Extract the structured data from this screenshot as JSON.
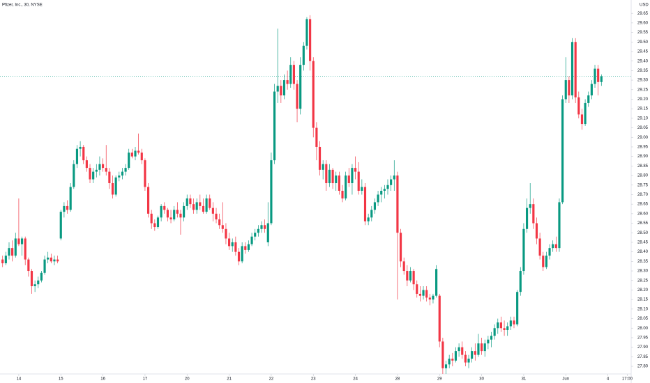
{
  "chart_data": {
    "type": "candlestick",
    "title": "Pfizer, Inc., 30, NYSE",
    "currency": "USD",
    "up_color": "#089981",
    "down_color": "#f23645",
    "price_line": 29.32,
    "price_line_color": "#089981",
    "grid": false,
    "ylim": [
      27.76,
      29.72
    ],
    "yticks": [
      {
        "value": 27.8,
        "label": "27.80"
      },
      27.85,
      {
        "value": 27.9,
        "label": "27.90"
      },
      27.95,
      {
        "value": 28,
        "label": "28.00"
      },
      28.05,
      {
        "value": 28.1,
        "label": "28.10"
      },
      28.15,
      {
        "value": 28.2,
        "label": "28.20"
      },
      28.25,
      {
        "value": 28.3,
        "label": "28.30"
      },
      28.35,
      {
        "value": 28.4,
        "label": "28.40"
      },
      28.45,
      {
        "value": 28.5,
        "label": "28.50"
      },
      28.55,
      {
        "value": 28.6,
        "label": "28.60"
      },
      28.65,
      {
        "value": 28.7,
        "label": "28.70"
      },
      28.75,
      {
        "value": 28.8,
        "label": "28.80"
      },
      28.85,
      {
        "value": 28.9,
        "label": "28.90"
      },
      28.95,
      {
        "value": 29,
        "label": "29.00"
      },
      29.05,
      {
        "value": 29.1,
        "label": "29.10"
      },
      29.15,
      {
        "value": 29.2,
        "label": "29.20"
      },
      29.25,
      {
        "value": 29.3,
        "label": "29.30"
      },
      29.35,
      {
        "value": 29.4,
        "label": "29.40"
      },
      29.45,
      {
        "value": 29.5,
        "label": "29.50"
      },
      29.55,
      {
        "value": 29.6,
        "label": "29.60"
      },
      29.65
    ],
    "xlim": [
      -0.8,
      194.2
    ],
    "xticks": [
      {
        "value": 5,
        "label": "14"
      },
      {
        "value": 18,
        "label": "15"
      },
      {
        "value": 31,
        "label": "16"
      },
      {
        "value": 44,
        "label": "17"
      },
      {
        "value": 57,
        "label": "20"
      },
      {
        "value": 70,
        "label": "21"
      },
      {
        "value": 83,
        "label": "22"
      },
      {
        "value": 96,
        "label": "23"
      },
      {
        "value": 109,
        "label": "24"
      },
      {
        "value": 122,
        "label": "28"
      },
      {
        "value": 135,
        "label": "29"
      },
      {
        "value": 148,
        "label": "30"
      },
      {
        "value": 161,
        "label": "31"
      },
      {
        "value": 174,
        "label": "Jun"
      },
      {
        "value": 187,
        "label": "4"
      },
      {
        "value": 193,
        "label": "17:00"
      }
    ],
    "ohlc": [
      [
        28.36,
        28.38,
        28.32,
        28.34
      ],
      [
        28.34,
        28.4,
        28.33,
        28.38
      ],
      [
        28.38,
        28.45,
        28.36,
        28.42
      ],
      [
        28.42,
        28.46,
        28.35,
        28.38
      ],
      [
        28.38,
        28.5,
        28.37,
        28.47
      ],
      [
        28.47,
        28.68,
        28.43,
        28.44
      ],
      [
        28.44,
        28.48,
        28.38,
        28.47
      ],
      [
        28.47,
        28.48,
        28.33,
        28.36
      ],
      [
        28.36,
        28.37,
        28.27,
        28.3
      ],
      [
        28.3,
        28.31,
        28.18,
        28.22
      ],
      [
        28.22,
        28.25,
        28.19,
        28.23
      ],
      [
        28.23,
        28.27,
        28.21,
        28.25
      ],
      [
        28.25,
        28.3,
        28.24,
        28.29
      ],
      [
        28.29,
        28.38,
        28.28,
        28.36
      ],
      [
        28.36,
        28.4,
        28.34,
        28.37
      ],
      [
        28.37,
        28.39,
        28.34,
        28.35
      ],
      [
        28.35,
        28.38,
        28.33,
        28.36
      ],
      [
        28.36,
        28.38,
        28.34,
        28.35
      ],
      [
        28.47,
        28.62,
        28.46,
        28.61
      ],
      [
        28.61,
        28.66,
        28.58,
        28.64
      ],
      [
        28.64,
        28.67,
        28.6,
        28.62
      ],
      [
        28.62,
        28.76,
        28.61,
        28.74
      ],
      [
        28.74,
        28.88,
        28.73,
        28.86
      ],
      [
        28.86,
        28.96,
        28.84,
        28.94
      ],
      [
        28.94,
        28.98,
        28.9,
        28.95
      ],
      [
        28.95,
        28.96,
        28.86,
        28.88
      ],
      [
        28.88,
        28.9,
        28.82,
        28.84
      ],
      [
        28.84,
        28.86,
        28.76,
        28.78
      ],
      [
        28.78,
        28.84,
        28.76,
        28.82
      ],
      [
        28.82,
        28.86,
        28.79,
        28.83
      ],
      [
        28.83,
        28.9,
        28.8,
        28.86
      ],
      [
        28.86,
        28.89,
        28.82,
        28.84
      ],
      [
        28.84,
        28.96,
        28.8,
        28.82
      ],
      [
        28.82,
        28.84,
        28.73,
        28.76
      ],
      [
        28.76,
        28.8,
        28.68,
        28.7
      ],
      [
        28.7,
        28.8,
        28.69,
        28.79
      ],
      [
        28.79,
        28.82,
        28.77,
        28.8
      ],
      [
        28.8,
        28.84,
        28.78,
        28.82
      ],
      [
        28.82,
        28.86,
        28.8,
        28.84
      ],
      [
        28.84,
        28.94,
        28.83,
        28.92
      ],
      [
        28.92,
        28.94,
        28.89,
        28.9
      ],
      [
        28.9,
        28.95,
        28.88,
        28.93
      ],
      [
        28.93,
        29.02,
        28.91,
        28.92
      ],
      [
        28.92,
        28.94,
        28.86,
        28.88
      ],
      [
        28.88,
        28.89,
        28.72,
        28.74
      ],
      [
        28.74,
        28.76,
        28.58,
        28.6
      ],
      [
        28.6,
        28.62,
        28.52,
        28.55
      ],
      [
        28.55,
        28.57,
        28.51,
        28.53
      ],
      [
        28.53,
        28.59,
        28.52,
        28.58
      ],
      [
        28.58,
        28.65,
        28.56,
        28.64
      ],
      [
        28.64,
        28.66,
        28.6,
        28.62
      ],
      [
        28.62,
        28.63,
        28.56,
        28.58
      ],
      [
        28.58,
        28.62,
        28.55,
        28.57
      ],
      [
        28.57,
        28.64,
        28.56,
        28.62
      ],
      [
        28.62,
        28.66,
        28.58,
        28.6
      ],
      [
        28.6,
        28.62,
        28.49,
        28.58
      ],
      [
        28.58,
        28.66,
        28.56,
        28.64
      ],
      [
        28.64,
        28.7,
        28.62,
        28.68
      ],
      [
        28.68,
        28.7,
        28.63,
        28.65
      ],
      [
        28.65,
        28.68,
        28.6,
        28.62
      ],
      [
        28.62,
        28.68,
        28.6,
        28.66
      ],
      [
        28.66,
        28.7,
        28.62,
        28.64
      ],
      [
        28.64,
        28.68,
        28.6,
        28.61
      ],
      [
        28.61,
        28.7,
        28.6,
        28.68
      ],
      [
        28.68,
        28.7,
        28.62,
        28.63
      ],
      [
        28.63,
        28.66,
        28.56,
        28.6
      ],
      [
        28.6,
        28.63,
        28.55,
        28.57
      ],
      [
        28.57,
        28.6,
        28.52,
        28.54
      ],
      [
        28.54,
        28.66,
        28.5,
        28.52
      ],
      [
        28.52,
        28.55,
        28.44,
        28.47
      ],
      [
        28.47,
        28.5,
        28.41,
        28.43
      ],
      [
        28.43,
        28.47,
        28.4,
        28.45
      ],
      [
        28.45,
        28.48,
        28.38,
        28.4
      ],
      [
        28.4,
        28.42,
        28.33,
        28.35
      ],
      [
        28.35,
        28.45,
        28.34,
        28.43
      ],
      [
        28.43,
        28.45,
        28.39,
        28.41
      ],
      [
        28.41,
        28.46,
        28.4,
        28.44
      ],
      [
        28.44,
        28.5,
        28.43,
        28.48
      ],
      [
        28.48,
        28.52,
        28.46,
        28.5
      ],
      [
        28.5,
        28.54,
        28.48,
        28.52
      ],
      [
        28.52,
        28.56,
        28.5,
        28.54
      ],
      [
        28.54,
        28.57,
        28.5,
        28.52
      ],
      [
        28.45,
        28.66,
        28.43,
        28.55
      ],
      [
        28.55,
        28.92,
        28.54,
        28.88
      ],
      [
        28.88,
        29.28,
        28.86,
        29.24
      ],
      [
        29.24,
        29.57,
        29.18,
        29.27
      ],
      [
        29.27,
        29.3,
        29.18,
        29.22
      ],
      [
        29.22,
        29.33,
        29.2,
        29.3
      ],
      [
        29.3,
        29.35,
        29.25,
        29.28
      ],
      [
        29.28,
        29.42,
        29.26,
        29.38
      ],
      [
        29.38,
        29.4,
        29.25,
        29.28
      ],
      [
        29.28,
        29.3,
        29.08,
        29.15
      ],
      [
        29.15,
        29.42,
        29.12,
        29.38
      ],
      [
        29.38,
        29.5,
        29.35,
        29.48
      ],
      [
        29.48,
        29.63,
        29.46,
        29.62
      ],
      [
        29.62,
        29.64,
        29.35,
        29.4
      ],
      [
        29.4,
        29.42,
        29.0,
        29.05
      ],
      [
        29.05,
        29.08,
        28.88,
        28.95
      ],
      [
        28.95,
        28.98,
        28.8,
        28.83
      ],
      [
        28.83,
        28.88,
        28.78,
        28.86
      ],
      [
        28.86,
        28.88,
        28.72,
        28.76
      ],
      [
        28.76,
        28.86,
        28.74,
        28.83
      ],
      [
        28.83,
        28.84,
        28.73,
        28.76
      ],
      [
        28.76,
        28.82,
        28.72,
        28.8
      ],
      [
        28.8,
        28.82,
        28.7,
        28.72
      ],
      [
        28.72,
        28.75,
        28.66,
        28.68
      ],
      [
        28.68,
        28.82,
        28.67,
        28.8
      ],
      [
        28.8,
        28.84,
        28.74,
        28.76
      ],
      [
        28.76,
        28.86,
        28.7,
        28.84
      ],
      [
        28.84,
        28.9,
        28.78,
        28.82
      ],
      [
        28.82,
        28.87,
        28.7,
        28.72
      ],
      [
        28.72,
        28.78,
        28.7,
        28.74
      ],
      [
        28.74,
        28.76,
        28.54,
        28.56
      ],
      [
        28.56,
        28.6,
        28.54,
        28.58
      ],
      [
        28.58,
        28.64,
        28.56,
        28.62
      ],
      [
        28.62,
        28.68,
        28.6,
        28.66
      ],
      [
        28.66,
        28.72,
        28.64,
        28.7
      ],
      [
        28.7,
        28.74,
        28.66,
        28.72
      ],
      [
        28.72,
        28.75,
        28.68,
        28.73
      ],
      [
        28.73,
        28.78,
        28.7,
        28.75
      ],
      [
        28.75,
        28.8,
        28.72,
        28.78
      ],
      [
        28.78,
        28.88,
        28.72,
        28.8
      ],
      [
        28.8,
        28.82,
        28.15,
        28.5
      ],
      [
        28.5,
        28.52,
        28.32,
        28.35
      ],
      [
        28.35,
        28.37,
        28.28,
        28.3
      ],
      [
        28.3,
        28.33,
        28.22,
        28.25
      ],
      [
        28.25,
        28.32,
        28.24,
        28.3
      ],
      [
        28.3,
        28.31,
        28.2,
        28.23
      ],
      [
        28.23,
        28.25,
        28.16,
        28.18
      ],
      [
        28.18,
        28.22,
        28.14,
        28.17
      ],
      [
        28.17,
        28.22,
        28.15,
        28.2
      ],
      [
        28.2,
        28.22,
        28.14,
        28.16
      ],
      [
        28.16,
        28.18,
        28.12,
        28.15
      ],
      [
        28.15,
        28.18,
        28.13,
        28.17
      ],
      [
        28.17,
        28.33,
        28.16,
        28.31
      ],
      [
        28.17,
        28.18,
        27.9,
        27.93
      ],
      [
        27.93,
        27.95,
        27.76,
        27.79
      ],
      [
        27.79,
        27.83,
        27.76,
        27.81
      ],
      [
        27.81,
        27.86,
        27.79,
        27.84
      ],
      [
        27.84,
        27.87,
        27.8,
        27.83
      ],
      [
        27.83,
        27.9,
        27.82,
        27.88
      ],
      [
        27.88,
        27.92,
        27.85,
        27.9
      ],
      [
        27.9,
        27.93,
        27.84,
        27.86
      ],
      [
        27.86,
        27.88,
        27.8,
        27.82
      ],
      [
        27.82,
        27.86,
        27.79,
        27.84
      ],
      [
        27.84,
        27.9,
        27.82,
        27.88
      ],
      [
        27.88,
        27.92,
        27.83,
        27.86
      ],
      [
        27.86,
        27.97,
        27.85,
        27.92
      ],
      [
        27.92,
        27.95,
        27.86,
        27.88
      ],
      [
        27.88,
        27.94,
        27.85,
        27.92
      ],
      [
        27.92,
        27.96,
        27.89,
        27.94
      ],
      [
        27.94,
        27.98,
        27.9,
        27.96
      ],
      [
        27.96,
        28.02,
        27.94,
        28.0
      ],
      [
        28.0,
        28.05,
        27.97,
        28.03
      ],
      [
        28.03,
        28.06,
        27.98,
        28.0
      ],
      [
        28.0,
        28.04,
        27.96,
        27.99
      ],
      [
        27.99,
        28.03,
        27.96,
        28.01
      ],
      [
        28.01,
        28.06,
        27.99,
        28.04
      ],
      [
        28.04,
        28.06,
        28.0,
        28.02
      ],
      [
        28.02,
        28.2,
        28.01,
        28.19
      ],
      [
        28.19,
        28.32,
        28.17,
        28.3
      ],
      [
        28.3,
        28.55,
        28.28,
        28.52
      ],
      [
        28.52,
        28.68,
        28.5,
        28.63
      ],
      [
        28.63,
        28.76,
        28.6,
        28.65
      ],
      [
        28.65,
        28.68,
        28.52,
        28.55
      ],
      [
        28.55,
        28.58,
        28.44,
        28.47
      ],
      [
        28.47,
        28.5,
        28.36,
        28.38
      ],
      [
        28.38,
        28.4,
        28.3,
        28.32
      ],
      [
        28.32,
        28.4,
        28.31,
        28.38
      ],
      [
        28.38,
        28.44,
        28.36,
        28.42
      ],
      [
        28.42,
        28.46,
        28.4,
        28.44
      ],
      [
        28.44,
        28.48,
        28.4,
        28.42
      ],
      [
        28.42,
        28.68,
        28.4,
        28.66
      ],
      [
        28.66,
        29.22,
        28.65,
        29.2
      ],
      [
        29.2,
        29.42,
        29.18,
        29.3
      ],
      [
        29.3,
        29.32,
        29.18,
        29.22
      ],
      [
        29.22,
        29.52,
        29.2,
        29.5
      ],
      [
        29.5,
        29.52,
        29.18,
        29.21
      ],
      [
        29.21,
        29.24,
        29.1,
        29.12
      ],
      [
        29.12,
        29.15,
        29.04,
        29.07
      ],
      [
        29.07,
        29.2,
        29.06,
        29.18
      ],
      [
        29.18,
        29.24,
        29.16,
        29.22
      ],
      [
        29.22,
        29.3,
        29.2,
        29.28
      ],
      [
        29.28,
        29.38,
        29.26,
        29.36
      ],
      [
        29.36,
        29.38,
        29.22,
        29.29
      ],
      [
        29.29,
        29.33,
        29.27,
        29.32
      ]
    ]
  }
}
